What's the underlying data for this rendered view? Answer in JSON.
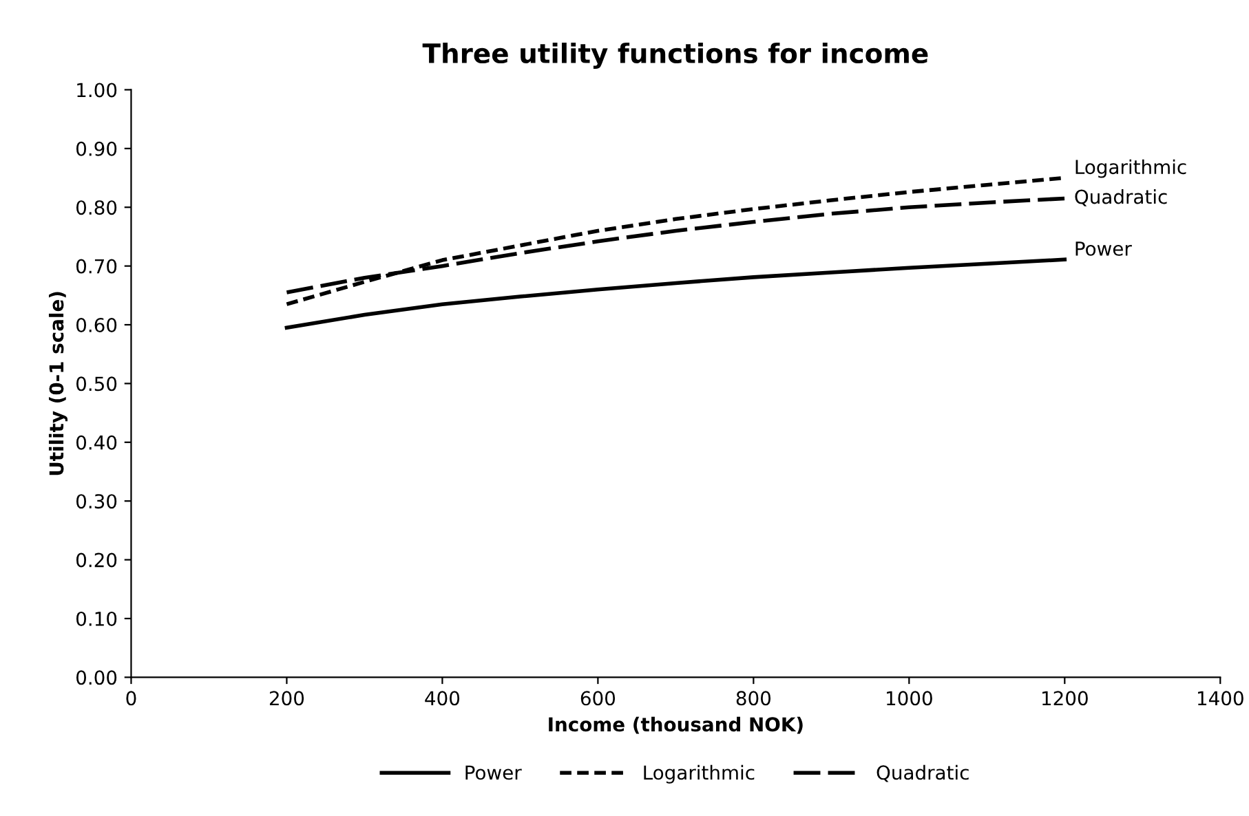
{
  "chart_data": {
    "type": "line",
    "title": "Three utility functions for income",
    "xlabel": "Income (thousand NOK)",
    "ylabel": "Utility (0-1 scale)",
    "x": [
      200,
      300,
      400,
      500,
      600,
      700,
      800,
      900,
      1000,
      1100,
      1200
    ],
    "series": [
      {
        "name": "Power",
        "color": "#000000",
        "line_style": "solid",
        "values": [
          0.595,
          0.617,
          0.635,
          0.648,
          0.66,
          0.671,
          0.681,
          0.689,
          0.697,
          0.704,
          0.711
        ]
      },
      {
        "name": "Logarithmic",
        "color": "#000000",
        "line_style": "dashed",
        "values": [
          0.635,
          0.673,
          0.71,
          0.735,
          0.76,
          0.78,
          0.797,
          0.812,
          0.826,
          0.838,
          0.85
        ]
      },
      {
        "name": "Quadratic",
        "color": "#000000",
        "line_style": "longdash",
        "values": [
          0.655,
          0.68,
          0.7,
          0.722,
          0.742,
          0.76,
          0.775,
          0.789,
          0.8,
          0.808,
          0.815
        ]
      }
    ],
    "xlim": [
      0,
      1400
    ],
    "xticks": [
      0,
      200,
      400,
      600,
      800,
      1000,
      1200,
      1400
    ],
    "ylim": [
      0,
      1
    ],
    "yticks": [
      {
        "value": 0,
        "label": "0.00"
      },
      {
        "value": 0.1,
        "label": "0.10"
      },
      {
        "value": 0.2,
        "label": "0.20"
      },
      {
        "value": 0.3,
        "label": "0.30"
      },
      {
        "value": 0.4,
        "label": "0.40"
      },
      {
        "value": 0.5,
        "label": "0.50"
      },
      {
        "value": 0.6,
        "label": "0.60"
      },
      {
        "value": 0.7,
        "label": "0.70"
      },
      {
        "value": 0.8,
        "label": "0.80"
      },
      {
        "value": 0.9,
        "label": "0.90"
      },
      {
        "value": 1,
        "label": "1.00"
      }
    ],
    "grid": false,
    "legend": "bottom",
    "marker": "none"
  }
}
